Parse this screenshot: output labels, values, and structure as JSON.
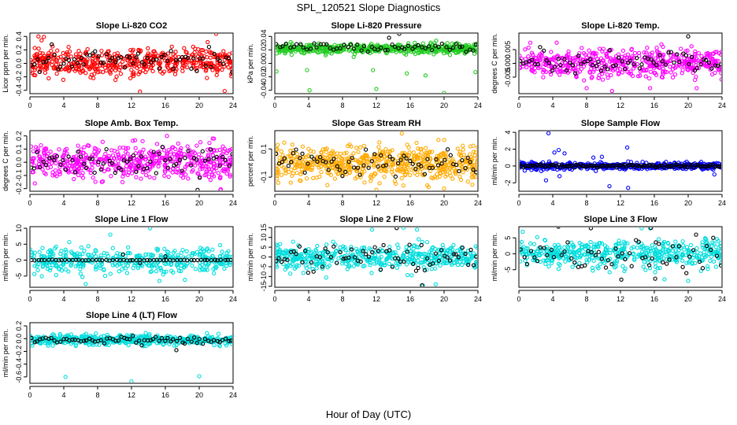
{
  "figure": {
    "title": "SPL_120521  Slope Diagnostics",
    "xlabel": "Hour of Day (UTC)"
  },
  "chart_data": [
    {
      "type": "scatter",
      "title": "Slope Li-820 CO2",
      "ylabel": "Licor ppm per min.",
      "xlim": [
        0,
        24
      ],
      "ylim": [
        -0.45,
        0.45
      ],
      "xticks": [
        0,
        4,
        8,
        12,
        16,
        20,
        24
      ],
      "yticks": [
        -0.4,
        -0.2,
        0.0,
        0.2,
        0.4
      ],
      "yticklabels": [
        "-0.4",
        "-0.2",
        "0.0",
        "0.2",
        "0.4"
      ],
      "series_color": "#ff0000",
      "seed": 11,
      "center": 0.02,
      "spread": 0.14,
      "n": 520,
      "outliers": [
        [
          1,
          0.4
        ],
        [
          13,
          -0.42
        ],
        [
          23,
          -0.41
        ],
        [
          22,
          0.44
        ]
      ],
      "overlay": {
        "color": "#000000",
        "center": 0.05,
        "spread": 0.11,
        "n": 70
      }
    },
    {
      "type": "scatter",
      "title": "Slope Li-820 Pressure",
      "ylabel": "kPa per min.",
      "xlim": [
        0,
        24
      ],
      "ylim": [
        -0.045,
        0.045
      ],
      "xticks": [
        0,
        4,
        8,
        12,
        16,
        20,
        24
      ],
      "yticks": [
        -0.04,
        -0.02,
        0.0,
        0.02,
        0.04
      ],
      "yticklabels": [
        "-0.04",
        "-0.02",
        "0.00",
        "0.02",
        "0.04"
      ],
      "series_color": "#22cc22",
      "seed": 23,
      "center": 0.022,
      "spread": 0.0045,
      "n": 520,
      "outliers": [
        [
          0.2,
          -0.012
        ],
        [
          3.8,
          -0.01
        ],
        [
          11.6,
          -0.01
        ],
        [
          15.6,
          -0.015
        ],
        [
          17.8,
          -0.018
        ],
        [
          23.7,
          -0.013
        ],
        [
          4.1,
          -0.04
        ],
        [
          12,
          -0.038
        ],
        [
          20,
          -0.044
        ]
      ],
      "overlay": {
        "color": "#000000",
        "center": 0.024,
        "spread": 0.004,
        "n": 60,
        "extra": [
          [
            14.7,
            0.044
          ],
          [
            13.5,
            0.038
          ]
        ]
      }
    },
    {
      "type": "scatter",
      "title": "Slope Li-820 Temp.",
      "ylabel": "degrees C per min.",
      "xlim": [
        0,
        24
      ],
      "ylim": [
        -0.011,
        0.011
      ],
      "xticks": [
        0,
        4,
        8,
        12,
        16,
        20,
        24
      ],
      "yticks": [
        -0.005,
        0.0,
        0.005
      ],
      "yticklabels": [
        "-0.005",
        "0.000",
        "0.005"
      ],
      "series_color": "#ff00ff",
      "seed": 37,
      "center": 0.0,
      "spread": 0.0033,
      "n": 520,
      "outliers": [
        [
          8,
          -0.009
        ],
        [
          11,
          -0.01
        ],
        [
          15.5,
          -0.009
        ],
        [
          21,
          -0.009
        ]
      ],
      "overlay": {
        "color": "#000000",
        "center": 0.0,
        "spread": 0.0022,
        "n": 70,
        "extra": [
          [
            20,
            0.0098
          ]
        ]
      }
    },
    {
      "type": "scatter",
      "title": "Slope Amb. Box Temp.",
      "ylabel": "degrees C per min.",
      "xlim": [
        0,
        24
      ],
      "ylim": [
        -0.22,
        0.24
      ],
      "xticks": [
        0,
        4,
        8,
        12,
        16,
        20,
        24
      ],
      "yticks": [
        -0.2,
        -0.1,
        0.0,
        0.1,
        0.2
      ],
      "yticklabels": [
        "-0.2",
        "-0.1",
        "0.0",
        "0.1",
        "0.2"
      ],
      "series_color": "#ff00ff",
      "seed": 41,
      "center": 0.0,
      "spread": 0.085,
      "n": 540,
      "outliers": [
        [
          16.2,
          0.2
        ],
        [
          21.6,
          0.18
        ],
        [
          22.5,
          -0.21
        ]
      ],
      "overlay": {
        "color": "#000000",
        "center": 0.0,
        "spread": 0.07,
        "n": 70,
        "extra": [
          [
            19.8,
            -0.21
          ]
        ]
      }
    },
    {
      "type": "scatter",
      "title": "Slope Gas Stream RH",
      "ylabel": "percent per min.",
      "xlim": [
        0,
        24
      ],
      "ylim": [
        -0.2,
        0.23
      ],
      "xticks": [
        0,
        4,
        8,
        12,
        16,
        20,
        24
      ],
      "yticks": [
        -0.1,
        0.1
      ],
      "yticklabels": [
        "-0.1",
        "0.1"
      ],
      "series_color": "#ffaa00",
      "seed": 53,
      "center": 0.0,
      "spread": 0.08,
      "n": 600,
      "outliers": [
        [
          15,
          0.21
        ],
        [
          12,
          -0.19
        ],
        [
          20,
          -0.18
        ]
      ],
      "overlay": {
        "color": "#000000",
        "center": 0.0,
        "spread": 0.06,
        "n": 70
      }
    },
    {
      "type": "scatter",
      "title": "Slope Sample Flow",
      "ylabel": "ml/min per min.",
      "xlim": [
        0,
        24
      ],
      "ylim": [
        -3.0,
        4.2
      ],
      "xticks": [
        0,
        4,
        8,
        12,
        16,
        20,
        24
      ],
      "yticks": [
        -2,
        0,
        2,
        4
      ],
      "yticklabels": [
        "-2",
        "0",
        "2",
        "4"
      ],
      "series_color": "#0000ff",
      "seed": 67,
      "center": 0.0,
      "spread": 0.25,
      "n": 460,
      "outliers": [
        [
          3.5,
          3.9
        ],
        [
          3.2,
          -1.7
        ],
        [
          4.2,
          1.6
        ],
        [
          4.7,
          1.9
        ],
        [
          5.4,
          1.5
        ],
        [
          10.7,
          -2.4
        ],
        [
          12.8,
          2.2
        ],
        [
          12.9,
          -2.6
        ],
        [
          4.8,
          -1.2
        ],
        [
          8.8,
          1.0
        ],
        [
          9.8,
          1.1
        ],
        [
          23.1,
          -1.0
        ]
      ],
      "overlay": {
        "color": "#000000",
        "center": 0.0,
        "spread": 0.12,
        "n": 120
      }
    },
    {
      "type": "scatter",
      "title": "Slope Line 1 Flow",
      "ylabel": "ml/min per min.",
      "xlim": [
        0,
        24
      ],
      "ylim": [
        -8.5,
        10.5
      ],
      "xticks": [
        0,
        4,
        8,
        12,
        16,
        20,
        24
      ],
      "yticks": [
        -5,
        0,
        5,
        10
      ],
      "yticklabels": [
        "-5",
        "0",
        "5",
        "10"
      ],
      "series_color": "#00dddd",
      "seed": 71,
      "center": 0.0,
      "spread": 2.6,
      "n": 420,
      "outliers": [
        [
          14.2,
          10
        ],
        [
          6.6,
          -7.5
        ],
        [
          9.5,
          8
        ],
        [
          15.3,
          -6.5
        ]
      ],
      "overlay": {
        "color": "#000000",
        "center": 0.0,
        "spread": 0.08,
        "n": 60,
        "extra": [
          [
            11,
            1.8
          ],
          [
            16,
            1.2
          ],
          [
            13,
            -0.9
          ]
        ]
      }
    },
    {
      "type": "scatter",
      "title": "Slope Line 2 Flow",
      "ylabel": "ml/min per min.",
      "xlim": [
        0,
        24
      ],
      "ylim": [
        -15.5,
        15.5
      ],
      "xticks": [
        0,
        4,
        8,
        12,
        16,
        20,
        24
      ],
      "yticks": [
        -15,
        -10,
        -5,
        0,
        5,
        10,
        15
      ],
      "yticklabels": [
        "-15",
        "-10",
        "-5",
        "0",
        "5",
        "10",
        "15"
      ],
      "series_color": "#00dddd",
      "seed": 83,
      "center": 0.0,
      "spread": 4.2,
      "n": 480,
      "outliers": [
        [
          15.2,
          15
        ],
        [
          16.8,
          14
        ],
        [
          19,
          -14
        ],
        [
          17.5,
          -14.6
        ],
        [
          11.5,
          14
        ]
      ],
      "overlay": {
        "color": "#000000",
        "center": 0.0,
        "spread": 4.5,
        "n": 70,
        "extra": [
          [
            14.4,
            14.8
          ],
          [
            17.4,
            -14.5
          ]
        ]
      }
    },
    {
      "type": "scatter",
      "title": "Slope Line 3 Flow",
      "ylabel": "ml/min per min.",
      "xlim": [
        0,
        24
      ],
      "ylim": [
        -10.5,
        8.5
      ],
      "xticks": [
        0,
        4,
        8,
        12,
        16,
        20,
        24
      ],
      "yticks": [
        -5,
        0,
        5
      ],
      "yticklabels": [
        "-5",
        "0",
        "5"
      ],
      "series_color": "#00dddd",
      "seed": 97,
      "center": 0.0,
      "spread": 3.0,
      "n": 480,
      "outliers": [
        [
          14.5,
          8
        ],
        [
          15.5,
          8
        ],
        [
          20,
          -8.5
        ],
        [
          17.2,
          -8
        ]
      ],
      "overlay": {
        "color": "#000000",
        "center": 0.0,
        "spread": 3.6,
        "n": 60,
        "extra": [
          [
            8.5,
            8
          ],
          [
            12.1,
            -8.1
          ],
          [
            16.1,
            -7.8
          ],
          [
            15.6,
            8.1
          ]
        ]
      }
    },
    {
      "type": "scatter",
      "title": "Slope Line 4 (LT) Flow",
      "ylabel": "ml/min per min.",
      "xlim": [
        0,
        24
      ],
      "ylim": [
        -0.7,
        0.25
      ],
      "xticks": [
        0,
        4,
        8,
        12,
        16,
        20,
        24
      ],
      "yticks": [
        -0.6,
        -0.4,
        -0.2,
        0.0,
        0.2
      ],
      "yticklabels": [
        "-0.6",
        "-0.4",
        "-0.2",
        "0.0",
        "0.2"
      ],
      "series_color": "#00dddd",
      "seed": 101,
      "center": -0.02,
      "spread": 0.05,
      "n": 520,
      "outliers": [
        [
          4.2,
          -0.6
        ],
        [
          12,
          -0.67
        ],
        [
          20,
          -0.59
        ]
      ],
      "overlay": {
        "color": "#000000",
        "center": -0.02,
        "spread": 0.045,
        "n": 70,
        "extra": [
          [
            17.3,
            -0.18
          ]
        ]
      }
    }
  ]
}
